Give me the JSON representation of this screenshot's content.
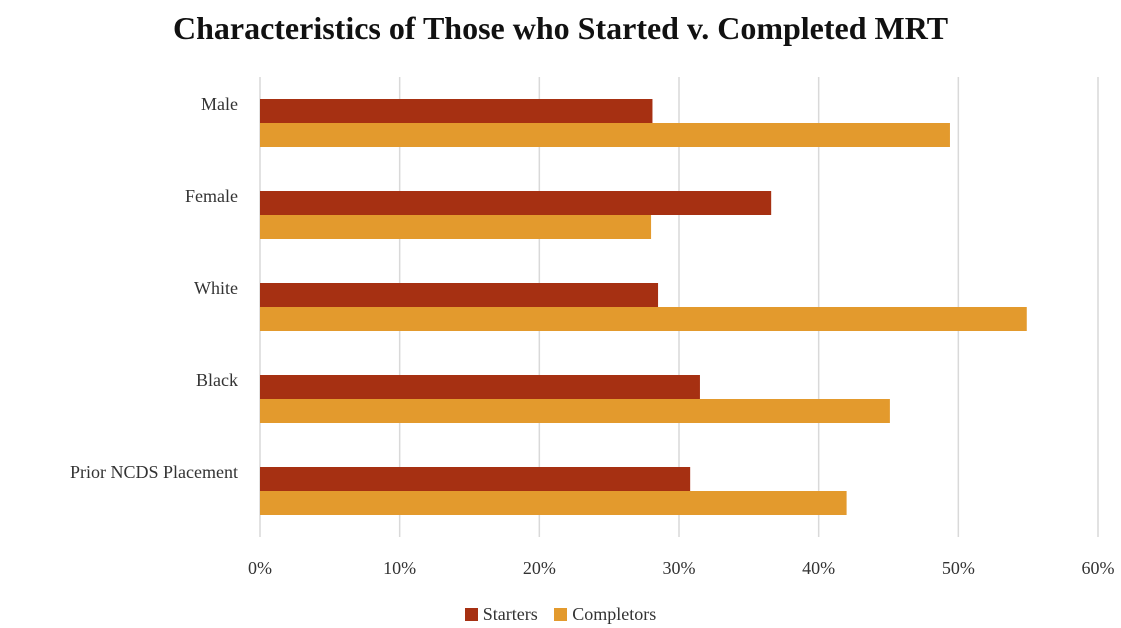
{
  "chart_data": {
    "type": "bar",
    "orientation": "horizontal",
    "title": "Characteristics of Those who Started v. Completed MRT",
    "categories": [
      "Male",
      "Female",
      "White",
      "Black",
      "Prior NCDS Placement"
    ],
    "series": [
      {
        "name": "Starters",
        "color": "#a63012",
        "values": [
          28.1,
          36.6,
          28.5,
          31.5,
          30.8
        ]
      },
      {
        "name": "Completors",
        "color": "#e39a2d",
        "values": [
          49.4,
          28.0,
          54.9,
          45.1,
          42.0
        ]
      }
    ],
    "x_ticks": [
      "0%",
      "10%",
      "20%",
      "30%",
      "40%",
      "50%",
      "60%"
    ],
    "xlim": [
      0,
      60
    ],
    "grid": "vertical",
    "legend_position": "bottom"
  }
}
